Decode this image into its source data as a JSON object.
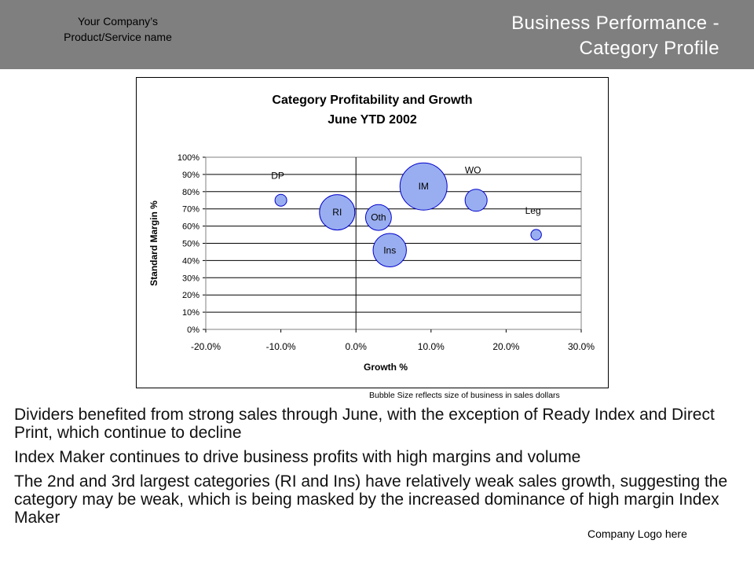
{
  "header": {
    "company_name": "Your Company’s\nProduct/Service name",
    "title": "Business Performance -\nCategory Profile",
    "background_color": "#7f7f7f"
  },
  "chart_data": {
    "type": "scatter",
    "subtype": "bubble",
    "title": "Category Profitability and Growth",
    "subtitle": "June YTD 2002",
    "xlabel": "Growth %",
    "ylabel": "Standard Margin %",
    "xlim": [
      -0.2,
      0.3
    ],
    "ylim": [
      0,
      1.0
    ],
    "x_ticks": [
      "-20.0%",
      "-10.0%",
      "0.0%",
      "10.0%",
      "20.0%",
      "30.0%"
    ],
    "y_ticks": [
      "0%",
      "10%",
      "20%",
      "30%",
      "40%",
      "50%",
      "60%",
      "70%",
      "80%",
      "90%",
      "100%"
    ],
    "grid": "horizontal",
    "bubble_color": "#99aef0",
    "series": [
      {
        "label": "DP",
        "x": -0.1,
        "y": 0.75,
        "size": 1.0,
        "label_pos": "above"
      },
      {
        "label": "RI",
        "x": -0.025,
        "y": 0.68,
        "size": 9.0,
        "label_pos": "inside"
      },
      {
        "label": "Oth",
        "x": 0.03,
        "y": 0.65,
        "size": 4.8,
        "label_pos": "inside"
      },
      {
        "label": "IM",
        "x": 0.09,
        "y": 0.83,
        "size": 16.0,
        "label_pos": "inside"
      },
      {
        "label": "WO",
        "x": 0.16,
        "y": 0.75,
        "size": 3.5,
        "label_pos": "above"
      },
      {
        "label": "Ins",
        "x": 0.045,
        "y": 0.46,
        "size": 8.0,
        "label_pos": "inside"
      },
      {
        "label": "Leg",
        "x": 0.24,
        "y": 0.55,
        "size": 0.8,
        "label_pos": "above"
      }
    ]
  },
  "footnote": "Bubble Size reflects size of business in sales dollars",
  "bullets": [
    "Dividers benefited from strong sales through June, with the exception of Ready Index and Direct Print, which continue to decline",
    "Index Maker continues to drive business profits with high margins and volume",
    "The 2nd and 3rd largest categories (RI and Ins) have relatively weak sales growth, suggesting the category may be weak, which is being masked by the increased dominance of high margin Index Maker"
  ],
  "logo_text": "Company Logo here"
}
